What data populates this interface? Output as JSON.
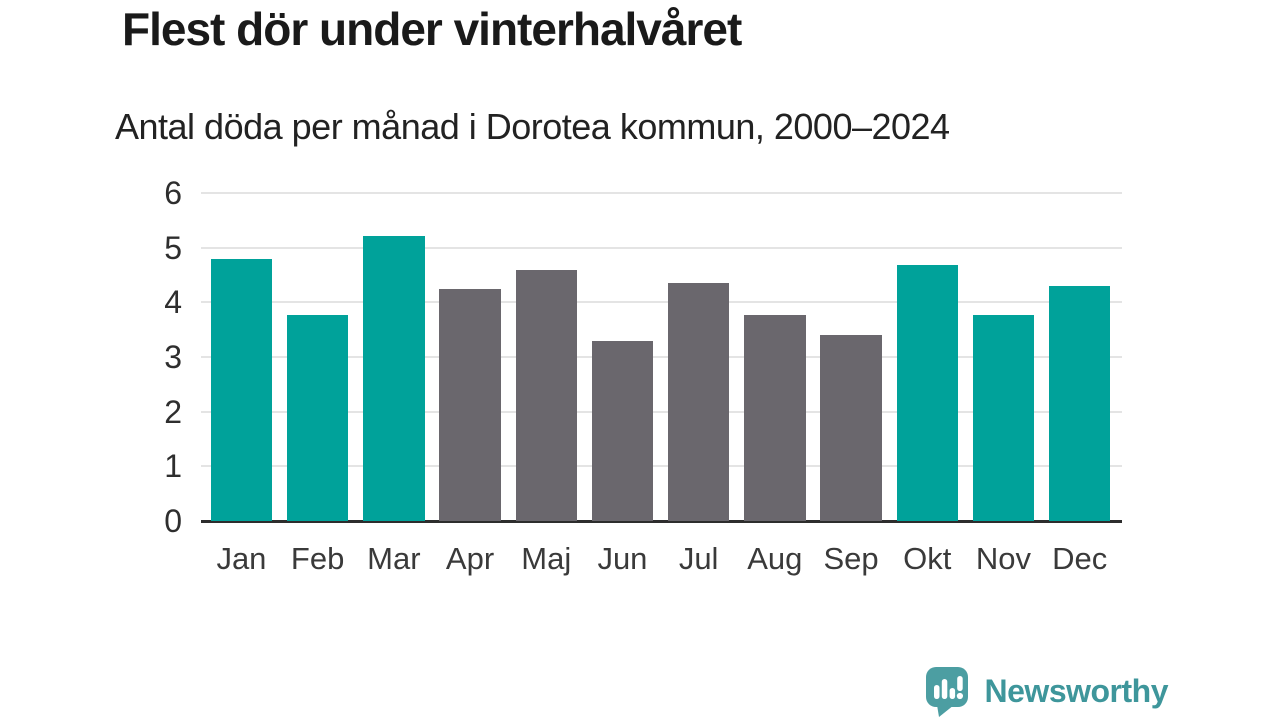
{
  "header": {
    "title": "Flest dör under vinterhalvåret",
    "subtitle": "Antal döda per månad i Dorotea kommun, 2000–2024"
  },
  "chart_data": {
    "type": "bar",
    "title": "Flest dör under vinterhalvåret",
    "subtitle": "Antal döda per månad i Dorotea kommun, 2000–2024",
    "categories": [
      "Jan",
      "Feb",
      "Mar",
      "Apr",
      "Maj",
      "Jun",
      "Jul",
      "Aug",
      "Sep",
      "Okt",
      "Nov",
      "Dec"
    ],
    "values": [
      4.8,
      3.77,
      5.22,
      4.25,
      4.6,
      3.3,
      4.35,
      3.77,
      3.41,
      4.68,
      3.77,
      4.3
    ],
    "highlighted_months": [
      "Jan",
      "Feb",
      "Mar",
      "Okt",
      "Nov",
      "Dec"
    ],
    "highlight_color": "#00A29A",
    "default_color": "#6A676D",
    "ylim": [
      0,
      6
    ],
    "yticks": [
      0,
      1,
      2,
      3,
      4,
      5,
      6
    ],
    "grid": true,
    "grid_color": "#e4e4e4",
    "axis_color": "#2d2d2d",
    "xlabel": "",
    "ylabel": "",
    "legend": "none"
  },
  "branding": {
    "logo_text": "Newsworthy",
    "logo_text_color": "#3E969B",
    "bubble_color": "#4C9EA2",
    "logo_icon": "bar-chart-exclamation-speech-bubble-icon"
  }
}
